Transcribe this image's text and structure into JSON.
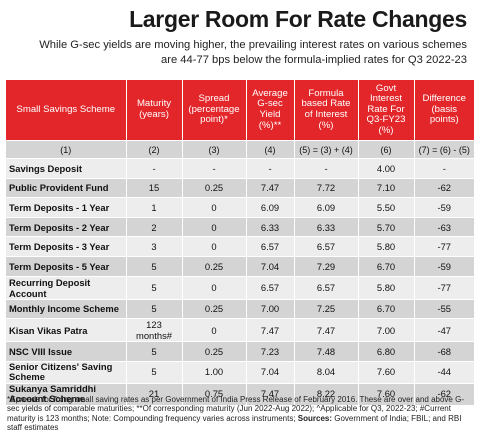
{
  "title": "Larger Room For Rate Changes",
  "subtitle": "While G-sec yields are moving higher, the prevailing interest rates on various schemes are 44-77 bps below the formula-implied rates for Q3 2022-23",
  "table": {
    "headers": [
      "Small Savings Scheme",
      "Maturity (years)",
      "Spread (percentage point)*",
      "Average G-sec Yield (%)**",
      "Formula based Rate of Interest (%)",
      "Govt Interest Rate For Q3-FY23 (%)",
      "Difference (basis points)"
    ],
    "column_numbers": [
      "(1)",
      "(2)",
      "(3)",
      "(4)",
      "(5) = (3) + (4)",
      "(6)",
      "(7) = (6) - (5)"
    ],
    "rows": [
      [
        "Savings Deposit",
        "-",
        "-",
        "-",
        "-",
        "4.00",
        "-"
      ],
      [
        "Public Provident Fund",
        "15",
        "0.25",
        "7.47",
        "7.72",
        "7.10",
        "-62"
      ],
      [
        "Term Deposits - 1 Year",
        "1",
        "0",
        "6.09",
        "6.09",
        "5.50",
        "-59"
      ],
      [
        "Term Deposits - 2 Year",
        "2",
        "0",
        "6.33",
        "6.33",
        "5.70",
        "-63"
      ],
      [
        "Term Deposits - 3 Year",
        "3",
        "0",
        "6.57",
        "6.57",
        "5.80",
        "-77"
      ],
      [
        "Term Deposits - 5 Year",
        "5",
        "0.25",
        "7.04",
        "7.29",
        "6.70",
        "-59"
      ],
      [
        "Recurring Deposit Account",
        "5",
        "0",
        "6.57",
        "6.57",
        "5.80",
        "-77"
      ],
      [
        "Monthly Income Scheme",
        "5",
        "0.25",
        "7.00",
        "7.25",
        "6.70",
        "-55"
      ],
      [
        "Kisan Vikas Patra",
        "123 months#",
        "0",
        "7.47",
        "7.47",
        "7.00",
        "-47"
      ],
      [
        "NSC VIII Issue",
        "5",
        "0.25",
        "7.23",
        "7.48",
        "6.80",
        "-68"
      ],
      [
        "Senior Citizens' Saving Scheme",
        "5",
        "1.00",
        "7.04",
        "8.04",
        "7.60",
        "-44"
      ],
      [
        "Sukanya Samriddhi Account Scheme",
        "21",
        "0.75",
        "7.47",
        "8.22",
        "7.60",
        "-62"
      ]
    ]
  },
  "footnote": {
    "main": "*Spreads for fixing small saving rates as per Government of India Press Release of February 2016. These are over and above G-sec yields of comparable maturities; **Of corresponding maturity (Jun 2022-Aug 2022); ^Applicable for Q3, 2022-23; #Current maturity is 123 months; Note: Compounding frequency varies across instruments; ",
    "sources_label": "Sources:",
    "sources_text": " Government of India; FBIL; and RBI staff estimates"
  }
}
